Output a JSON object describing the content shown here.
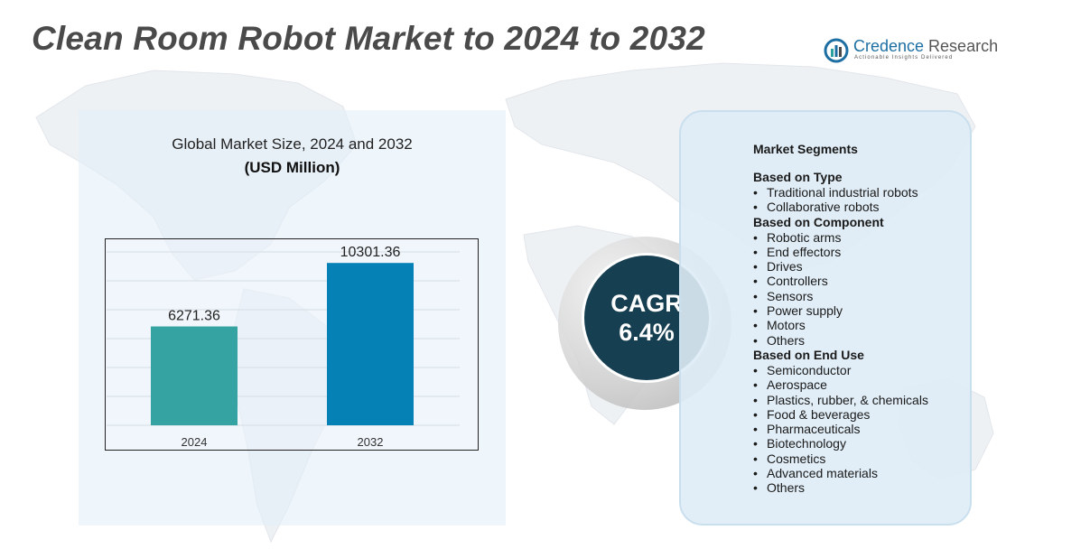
{
  "title": "Clean Room Robot Market to 2024 to 2032",
  "logo": {
    "name_part1": "Credence",
    "name_part2": " Research",
    "tagline": "Actionable Insights Delivered",
    "icon": "credence-research-logo-icon"
  },
  "chart": {
    "title": "Global Market Size,  2024 and 2032",
    "unit": "(USD Million)"
  },
  "chart_data": {
    "type": "bar",
    "categories": [
      "2024",
      "2032"
    ],
    "values": [
      6271.36,
      10301.36
    ],
    "value_labels": [
      "6271.36",
      "10301.36"
    ],
    "ylim": [
      0,
      11000
    ],
    "grid": true,
    "colors": [
      "#35a3a2",
      "#0681b5"
    ]
  },
  "cagr": {
    "label": "CAGR",
    "value": "6.4%"
  },
  "segments": {
    "header": "Market Segments",
    "groups": [
      {
        "title": "Based on Type",
        "items": [
          "Traditional industrial robots",
          "Collaborative robots"
        ]
      },
      {
        "title": "Based on Component",
        "items": [
          "Robotic arms",
          "End effectors",
          "Drives",
          "Controllers",
          "Sensors",
          "Power supply",
          "Motors",
          "Others"
        ]
      },
      {
        "title": "Based on End Use",
        "items": [
          "Semiconductor",
          "Aerospace",
          "Plastics, rubber, & chemicals",
          "Food & beverages",
          "Pharmaceuticals",
          "Biotechnology",
          "Cosmetics",
          "Advanced materials",
          "Others"
        ]
      }
    ]
  },
  "colors": {
    "title": "#4a4a4a",
    "cagr_circle": "#173f52",
    "panel": "#e2eef8",
    "accent": "#1d6fa3"
  }
}
